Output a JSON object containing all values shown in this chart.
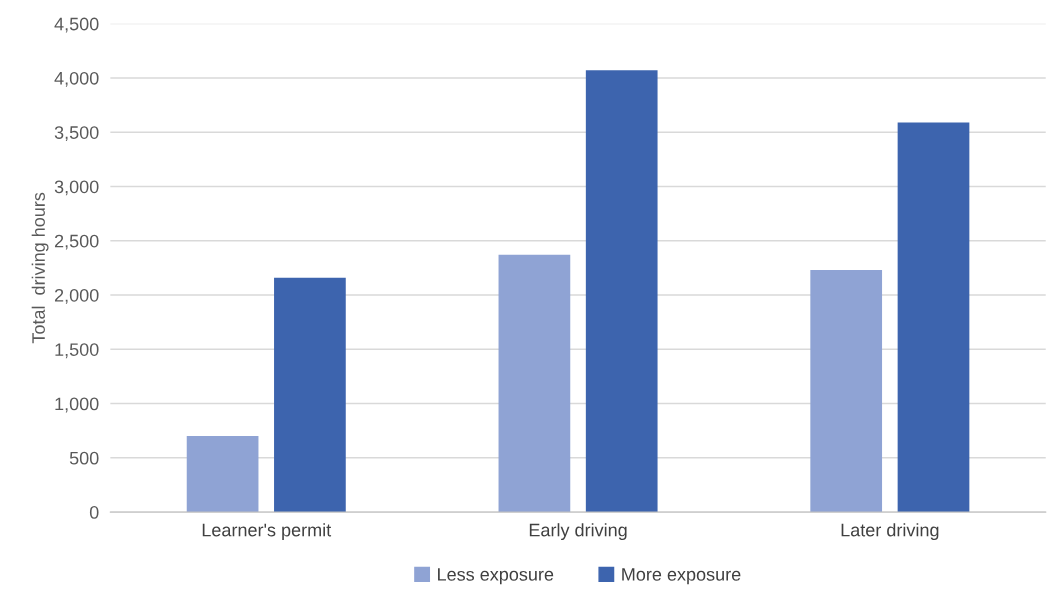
{
  "chart_data": {
    "type": "bar",
    "ylabel": "Total  driving hours",
    "categories": [
      "Learner's permit",
      "Early driving",
      "Later driving"
    ],
    "series": [
      {
        "name": "Less exposure",
        "color": "#8fa3d4",
        "values": [
          700,
          2370,
          2230
        ]
      },
      {
        "name": "More exposure",
        "color": "#3d64ae",
        "values": [
          2160,
          4070,
          3590
        ]
      }
    ],
    "ylim": [
      0,
      4500
    ],
    "yticks": [
      {
        "value": 0,
        "label": "0"
      },
      {
        "value": 500,
        "label": "500"
      },
      {
        "value": 1000,
        "label": "1,000"
      },
      {
        "value": 1500,
        "label": "1,500"
      },
      {
        "value": 2000,
        "label": "2,000"
      },
      {
        "value": 2500,
        "label": "2,500"
      },
      {
        "value": 3000,
        "label": "3,000"
      },
      {
        "value": 3500,
        "label": "3,500"
      },
      {
        "value": 4000,
        "label": "4,000"
      },
      {
        "value": 4500,
        "label": "4,500"
      }
    ],
    "grid": "y",
    "legend": "bottom"
  }
}
